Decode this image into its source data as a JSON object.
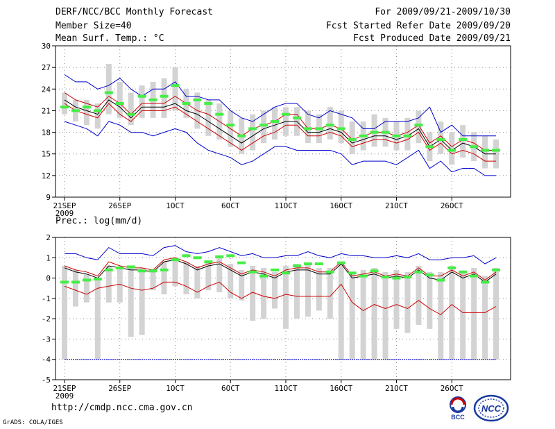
{
  "header": {
    "title": "DERF/NCC/BCC Monthly Forecast",
    "member_size": "Member Size=40",
    "variable": "Mean Surf. Temp.: °C",
    "period": "For 2009/09/21-2009/10/30",
    "started": "Fcst Started Refer Date 2009/09/20",
    "produced": "Fcst Produced Date 2009/09/21"
  },
  "footer": {
    "url": "http://cmdp.ncc.cma.gov.cn",
    "grads": "GrADS: COLA/IGES",
    "logo_bcc_text": "BCC",
    "logo_ncc_text": "NCC"
  },
  "colors": {
    "ensemble_box": "#d3d3d3",
    "mean_marker": "#44ee44",
    "upper_envelope": "#0000cc",
    "lower_envelope": "#0000cc",
    "median_line": "#000000",
    "spread_lines": "#cc0000"
  },
  "chart_data": [
    {
      "type": "box",
      "title": "Mean Surf. Temp.: °C",
      "ylim": [
        9,
        30
      ],
      "yticks": [
        9,
        12,
        15,
        18,
        21,
        24,
        27,
        30
      ],
      "xtick_labels": [
        "21SEP",
        "26SEP",
        "1OCT",
        "6OCT",
        "11OCT",
        "16OCT",
        "21OCT",
        "26OCT"
      ],
      "year_label": "2009",
      "days": 40,
      "upper_envelope": [
        26,
        25,
        25,
        24,
        24.5,
        25.5,
        24,
        23,
        24,
        24,
        25,
        23,
        23,
        22.5,
        22.5,
        21,
        20,
        19.5,
        20.5,
        21.5,
        22,
        22,
        20.5,
        20,
        21,
        20.5,
        20,
        18.5,
        18.5,
        19.5,
        19.5,
        19.5,
        20,
        21.5,
        18,
        19,
        17.5,
        17.5,
        17.5,
        17.5
      ],
      "red_upper": [
        23.5,
        22.5,
        22,
        21.5,
        23,
        22,
        20.5,
        22,
        22,
        22,
        23,
        22,
        21,
        20.5,
        19.5,
        18.5,
        17.5,
        18.5,
        19,
        19.5,
        20.5,
        20.5,
        18.5,
        18.5,
        19,
        18.5,
        17,
        17.5,
        18,
        18,
        17.5,
        18,
        19,
        16.5,
        17.5,
        16,
        17,
        16.5,
        15.5,
        15.5
      ],
      "median": [
        22.5,
        21.5,
        21,
        20.5,
        22.5,
        21.5,
        20,
        21.5,
        21.5,
        21.5,
        22,
        21,
        20.5,
        19.5,
        18.5,
        17.5,
        16.5,
        17.5,
        18.5,
        19,
        19.5,
        19.5,
        18,
        18,
        18.5,
        18,
        16.5,
        17,
        17.5,
        17.5,
        17,
        17.5,
        18.5,
        16,
        17,
        15.5,
        16.5,
        16,
        15,
        15
      ],
      "red_lower": [
        22,
        21,
        20.5,
        20,
        22,
        20.5,
        19.5,
        21,
        21,
        21,
        21.5,
        20.5,
        19.5,
        18.5,
        17.5,
        16.5,
        15.5,
        16.5,
        17.5,
        18,
        19,
        19,
        17.5,
        17.5,
        18,
        17.5,
        16,
        16.5,
        17,
        17,
        16.5,
        17,
        18,
        15.5,
        16.5,
        15,
        15.5,
        15,
        14,
        14
      ],
      "lower_envelope": [
        19.5,
        19,
        18.5,
        17.5,
        19.5,
        19,
        18,
        18,
        17.5,
        18,
        18.5,
        18,
        16.5,
        15.5,
        15,
        14.5,
        13.5,
        14,
        15,
        16,
        16,
        15.5,
        15.5,
        15.5,
        15.5,
        15,
        13.5,
        14,
        14,
        14,
        13.5,
        14.5,
        15.5,
        13,
        14,
        12.5,
        13,
        13,
        12,
        12
      ],
      "box_top": [
        23.5,
        22.5,
        22.5,
        22,
        27.5,
        25,
        23.5,
        24.5,
        25,
        25.5,
        27,
        24,
        23.5,
        22.5,
        22,
        21,
        20,
        20.5,
        21,
        21.5,
        21.5,
        21.5,
        21,
        20.5,
        21.5,
        21,
        19.5,
        19.5,
        20.5,
        20,
        19.5,
        20,
        21,
        18,
        19.5,
        18,
        19,
        18,
        17.5,
        17
      ],
      "box_bottom": [
        20.5,
        19.5,
        19,
        18.5,
        20.5,
        20,
        19,
        20,
        20,
        20,
        21,
        20,
        18.5,
        17.5,
        17,
        16,
        15,
        15.5,
        16.5,
        17,
        17.5,
        17.5,
        16.5,
        16.5,
        17,
        16.5,
        15,
        15.5,
        16,
        16,
        15.5,
        15.5,
        16.5,
        14,
        15,
        13.5,
        14.5,
        14,
        13,
        13
      ],
      "mean_marker": [
        21.5,
        21,
        21.5,
        21,
        23.5,
        22,
        20.5,
        23,
        22.5,
        23,
        24.5,
        22,
        22.5,
        22,
        20.5,
        19,
        17.5,
        18.5,
        19,
        19.5,
        20.5,
        20,
        18.5,
        18.5,
        19,
        18.5,
        17,
        17.5,
        18,
        18,
        17.5,
        17.5,
        19,
        16,
        17,
        15.5,
        17,
        16,
        15.5,
        15.5
      ]
    },
    {
      "type": "box",
      "title": "Prec.: log(mm/d)",
      "ylim": [
        -5,
        2
      ],
      "yticks": [
        -5,
        -4,
        -3,
        -2,
        -1,
        0,
        1,
        2
      ],
      "xtick_labels": [
        "21SEP",
        "26SEP",
        "1OCT",
        "6OCT",
        "11OCT",
        "16OCT",
        "21OCT",
        "26OCT"
      ],
      "year_label": "2009",
      "days": 40,
      "upper_envelope": [
        1.2,
        1.2,
        1.0,
        0.9,
        1.5,
        1.2,
        1.2,
        1.2,
        1.1,
        1.5,
        1.6,
        1.3,
        1.2,
        1.3,
        1.5,
        1.3,
        1.1,
        1.2,
        1.0,
        1.0,
        1.1,
        1.1,
        1.3,
        1.1,
        1.0,
        1.2,
        1.1,
        1.1,
        1.0,
        1.0,
        1.1,
        1.0,
        1.2,
        0.9,
        0.9,
        1.0,
        1.0,
        1.1,
        0.7,
        1.0
      ],
      "red_upper": [
        0.6,
        0.4,
        0.3,
        0.1,
        0.8,
        0.6,
        0.5,
        0.5,
        0.4,
        0.9,
        1.0,
        0.8,
        0.5,
        0.7,
        0.8,
        0.5,
        0.2,
        0.4,
        0.3,
        0.1,
        0.4,
        0.5,
        0.5,
        0.3,
        0.3,
        0.8,
        0.1,
        0.2,
        0.3,
        0.1,
        0.2,
        0.1,
        0.5,
        0.1,
        0.1,
        0.4,
        0.1,
        0.3,
        -0.1,
        0.3
      ],
      "median": [
        0.5,
        0.3,
        0.2,
        0.0,
        0.6,
        0.5,
        0.4,
        0.4,
        0.3,
        0.8,
        0.9,
        0.7,
        0.4,
        0.6,
        0.7,
        0.4,
        0.1,
        0.3,
        0.2,
        0.0,
        0.3,
        0.4,
        0.4,
        0.2,
        0.2,
        0.7,
        0.0,
        0.1,
        0.2,
        0.0,
        0.1,
        0.0,
        0.4,
        0.0,
        -0.1,
        0.3,
        0.0,
        0.2,
        -0.2,
        0.2
      ],
      "red_lower": [
        -0.4,
        -0.6,
        -0.8,
        -0.5,
        -0.4,
        -0.3,
        -0.5,
        -0.6,
        -0.5,
        -0.2,
        -0.2,
        -0.4,
        -0.7,
        -0.4,
        -0.2,
        -0.7,
        -1.0,
        -0.7,
        -0.9,
        -1.0,
        -0.8,
        -0.9,
        -0.9,
        -0.9,
        -0.9,
        -0.3,
        -1.2,
        -1.6,
        -1.3,
        -1.5,
        -1.3,
        -1.5,
        -1.1,
        -1.5,
        -1.8,
        -1.3,
        -1.7,
        -1.7,
        -1.7,
        -1.4
      ],
      "lower_envelope": [
        -4.0,
        -4.0,
        -4.0,
        -4.0,
        -4.0,
        -4.0,
        -4.0,
        -4.0,
        -4.0,
        -4.0,
        -4.0,
        -4.0,
        -4.0,
        -4.0,
        -4.0,
        -4.0,
        -4.0,
        -4.0,
        -4.0,
        -4.0,
        -4.0,
        -4.0,
        -4.0,
        -4.0,
        -4.0,
        -4.0,
        -4.0,
        -4.0,
        -4.0,
        -4.0,
        -4.0,
        -4.0,
        -4.0,
        -4.0,
        -4.0,
        -4.0,
        -4.0,
        -4.0,
        -4.0,
        -4.0
      ],
      "box_top": [
        0.6,
        0.4,
        0.2,
        0.0,
        0.6,
        0.5,
        0.5,
        0.5,
        0.4,
        0.8,
        1.0,
        0.8,
        0.6,
        0.8,
        1.0,
        0.7,
        0.4,
        0.6,
        0.5,
        0.3,
        0.6,
        0.7,
        0.7,
        0.5,
        0.5,
        0.8,
        0.3,
        0.4,
        0.5,
        0.3,
        0.4,
        0.3,
        0.6,
        0.3,
        0.3,
        0.6,
        0.3,
        0.5,
        0.1,
        0.5
      ],
      "box_bottom": [
        -4.0,
        -1.4,
        -1.2,
        -4.0,
        -1.2,
        -1.2,
        -2.9,
        -2.8,
        -0.6,
        -0.8,
        -0.4,
        -0.8,
        -1.0,
        -0.6,
        -0.7,
        -1.0,
        -1.1,
        -2.1,
        -2.0,
        -1.5,
        -2.5,
        -2.0,
        -1.9,
        -1.6,
        -2.0,
        -4.0,
        -4.0,
        -4.0,
        -4.0,
        -4.0,
        -2.5,
        -2.7,
        -2.3,
        -2.5,
        -4.0,
        -4.0,
        -4.0,
        -4.0,
        -4.0,
        -4.0
      ],
      "mean_marker": [
        -0.2,
        -0.2,
        -0.1,
        -0.05,
        0.4,
        0.5,
        0.55,
        0.35,
        0.35,
        0.4,
        0.9,
        1.1,
        1.0,
        0.8,
        1.05,
        1.1,
        0.75,
        0.3,
        0.1,
        0.4,
        0.25,
        0.6,
        0.7,
        0.7,
        0.3,
        0.75,
        0.25,
        0.1,
        0.35,
        0.05,
        0.0,
        0.05,
        0.3,
        0.15,
        -0.1,
        0.5,
        0.3,
        0.1,
        -0.2,
        0.4
      ]
    }
  ]
}
